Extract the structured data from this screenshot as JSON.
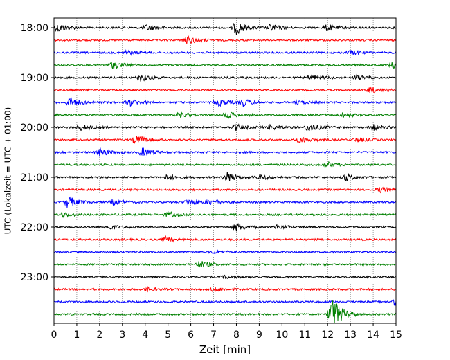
{
  "chart_data": {
    "type": "line",
    "title": "",
    "xlabel": "Zeit  [min]",
    "ylabel": "UTC (Lokalzeit = UTC + 01:00)",
    "xlim": [
      0,
      15
    ],
    "x_ticks": [
      "0",
      "1",
      "2",
      "3",
      "4",
      "5",
      "6",
      "7",
      "8",
      "9",
      "10",
      "11",
      "12",
      "13",
      "14",
      "15"
    ],
    "y_ticks": [
      "18:00",
      "19:00",
      "20:00",
      "21:00",
      "22:00",
      "23:00"
    ],
    "grid": "vertical dotted lines at each minute",
    "trace_interval_minutes": 15,
    "trace_colors": [
      "#000000",
      "#ff0000",
      "#0000ff",
      "#008000"
    ],
    "series": [
      {
        "start": "18:00",
        "events": [
          [
            0.2,
            1.0
          ],
          [
            4.1,
            0.8
          ],
          [
            8.0,
            1.6
          ],
          [
            9.5,
            0.8
          ],
          [
            12.0,
            0.8
          ]
        ]
      },
      {
        "start": "18:15",
        "events": [
          [
            5.8,
            1.0
          ]
        ]
      },
      {
        "start": "18:30",
        "events": [
          [
            3.2,
            0.5
          ],
          [
            13.0,
            0.5
          ]
        ]
      },
      {
        "start": "18:45",
        "events": [
          [
            2.6,
            0.8
          ],
          [
            14.9,
            0.8
          ]
        ]
      },
      {
        "start": "19:00",
        "events": [
          [
            3.8,
            0.8
          ],
          [
            11.3,
            0.8
          ],
          [
            13.3,
            0.6
          ]
        ]
      },
      {
        "start": "19:15",
        "events": [
          [
            13.9,
            0.8
          ]
        ]
      },
      {
        "start": "19:30",
        "events": [
          [
            0.7,
            1.2
          ],
          [
            3.3,
            0.8
          ],
          [
            7.2,
            0.8
          ],
          [
            8.3,
            0.8
          ],
          [
            10.7,
            0.5
          ]
        ]
      },
      {
        "start": "19:45",
        "events": [
          [
            5.5,
            0.5
          ],
          [
            7.6,
            0.7
          ],
          [
            12.7,
            0.5
          ]
        ]
      },
      {
        "start": "20:00",
        "events": [
          [
            1.2,
            0.6
          ],
          [
            8.0,
            0.7
          ],
          [
            9.5,
            0.6
          ],
          [
            11.2,
            1.0
          ],
          [
            14.0,
            0.8
          ]
        ]
      },
      {
        "start": "20:15",
        "events": [
          [
            3.6,
            1.0
          ],
          [
            10.8,
            0.6
          ],
          [
            13.3,
            0.5
          ]
        ]
      },
      {
        "start": "20:30",
        "events": [
          [
            2.0,
            1.0
          ],
          [
            3.9,
            1.0
          ]
        ]
      },
      {
        "start": "20:45",
        "events": [
          [
            12.0,
            0.6
          ]
        ]
      },
      {
        "start": "21:00",
        "events": [
          [
            5.0,
            0.6
          ],
          [
            7.6,
            1.2
          ],
          [
            9.0,
            0.6
          ],
          [
            12.8,
            0.8
          ]
        ]
      },
      {
        "start": "21:15",
        "events": [
          [
            14.3,
            0.6
          ]
        ]
      },
      {
        "start": "21:30",
        "events": [
          [
            0.6,
            1.4
          ],
          [
            2.6,
            0.6
          ],
          [
            5.9,
            0.7
          ],
          [
            6.8,
            0.6
          ]
        ]
      },
      {
        "start": "21:45",
        "events": [
          [
            0.4,
            0.6
          ],
          [
            5.0,
            0.6
          ]
        ]
      },
      {
        "start": "22:00",
        "events": [
          [
            2.4,
            0.6
          ],
          [
            8.0,
            1.0
          ],
          [
            9.8,
            0.5
          ]
        ]
      },
      {
        "start": "22:15",
        "events": [
          [
            4.9,
            0.6
          ]
        ]
      },
      {
        "start": "22:30",
        "events": [
          [
            7.0,
            0.3
          ]
        ]
      },
      {
        "start": "22:45",
        "events": [
          [
            6.4,
            0.8
          ]
        ]
      },
      {
        "start": "23:00",
        "events": [
          [
            7.5,
            0.3
          ]
        ]
      },
      {
        "start": "23:15",
        "events": [
          [
            4.1,
            0.5
          ],
          [
            7.0,
            0.5
          ]
        ]
      },
      {
        "start": "23:30",
        "events": [
          [
            14.9,
            0.8
          ]
        ]
      },
      {
        "start": "23:45",
        "events": [
          [
            12.2,
            4.0
          ]
        ]
      }
    ]
  }
}
